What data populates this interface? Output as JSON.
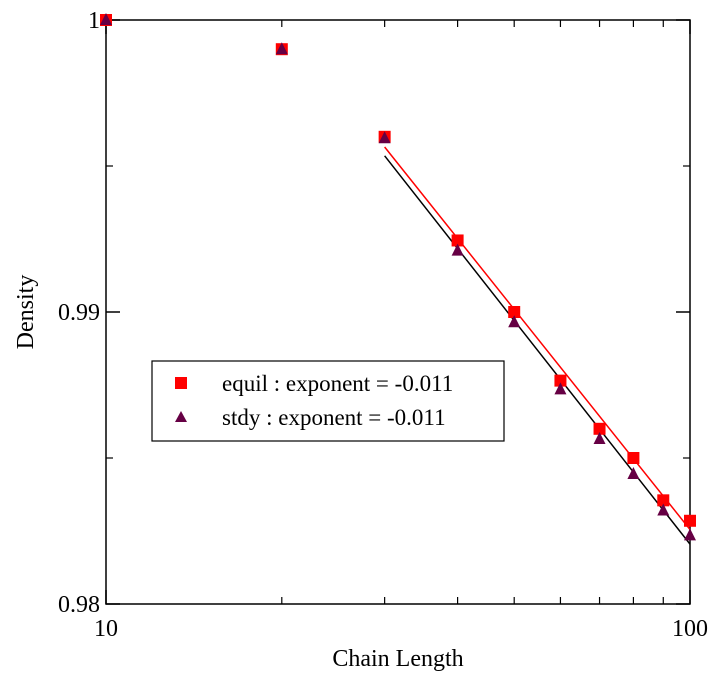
{
  "chart_data": {
    "type": "scatter",
    "xscale": "log",
    "xlim": [
      10,
      100
    ],
    "ylim": [
      0.98,
      1.0
    ],
    "xlabel": "Chain Length",
    "ylabel": "Density",
    "grid": false,
    "legend_position": "center-left",
    "x_ticks": [
      {
        "value": 10,
        "label": "10"
      },
      {
        "value": 100,
        "label": "100"
      }
    ],
    "y_ticks": [
      {
        "value": 0.98,
        "label": "0.98"
      },
      {
        "value": 0.99,
        "label": "0.99"
      },
      {
        "value": 1.0,
        "label": "1"
      }
    ],
    "series": [
      {
        "name": "equil : exponent = -0.011",
        "marker": "square",
        "color": "#ff0000",
        "x": [
          10,
          20,
          30,
          40,
          50,
          60,
          70,
          80,
          90,
          100
        ],
        "y": [
          1.0,
          0.999,
          0.996,
          0.99245,
          0.99,
          0.98765,
          0.986,
          0.985,
          0.98355,
          0.98285
        ]
      },
      {
        "name": "stdy : exponent = -0.011",
        "marker": "triangle",
        "color": "#660044",
        "x": [
          10,
          20,
          30,
          40,
          50,
          60,
          70,
          80,
          90,
          100
        ],
        "y": [
          1.0,
          0.999,
          0.99595,
          0.9921,
          0.98965,
          0.98735,
          0.98565,
          0.98445,
          0.9832,
          0.98235
        ]
      }
    ],
    "fits": [
      {
        "series": "equil : exponent = -0.011",
        "color": "#ff0000",
        "x": [
          30,
          100
        ],
        "y": [
          0.99565,
          0.98255
        ]
      },
      {
        "series": "stdy : exponent = -0.011",
        "color": "#000000",
        "x": [
          30,
          100
        ],
        "y": [
          0.99535,
          0.98205
        ]
      }
    ]
  }
}
